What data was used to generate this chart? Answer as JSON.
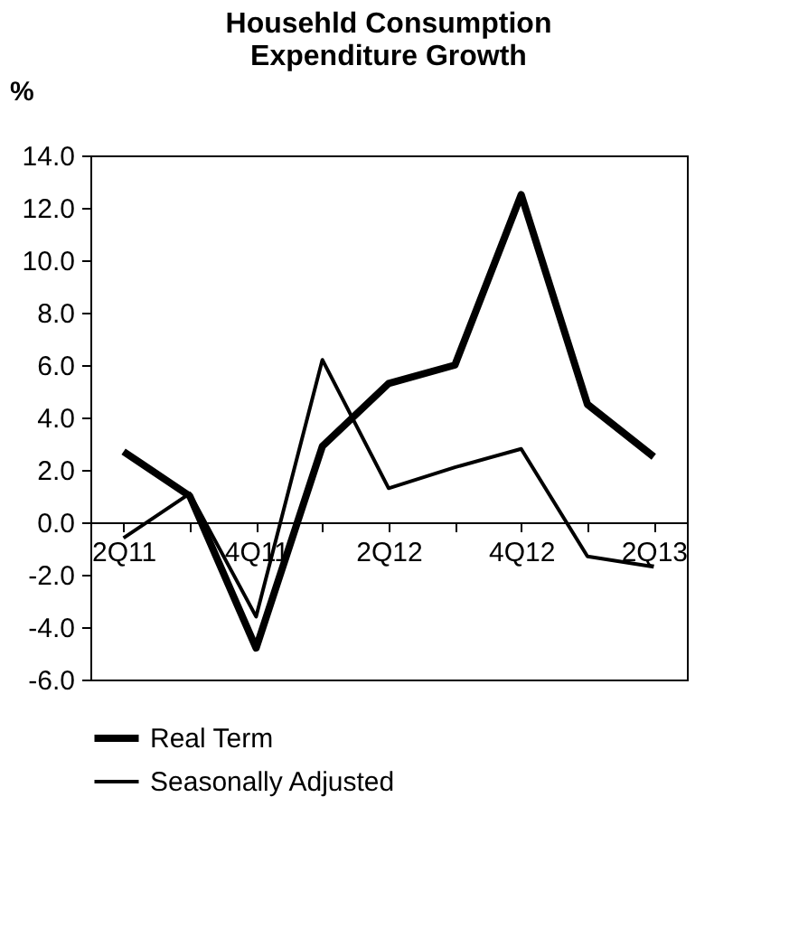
{
  "chart_data": {
    "type": "line",
    "title": "Househld Consumption\nExpenditure Growth",
    "ylabel": "%",
    "categories": [
      "2Q11",
      null,
      "4Q11",
      null,
      "2Q12",
      null,
      "4Q12",
      null,
      "2Q13"
    ],
    "series": [
      {
        "name": "Real Term",
        "color": "#000000",
        "values": [
          2.7,
          1.0,
          -4.8,
          2.9,
          5.3,
          6.0,
          12.5,
          4.5,
          2.5
        ]
      },
      {
        "name": "Seasonally Adjusted",
        "color": "#000000",
        "values": [
          -0.6,
          1.1,
          -3.6,
          6.2,
          1.3,
          2.1,
          2.8,
          -1.3,
          -1.7
        ]
      }
    ],
    "ylim": [
      -6,
      14
    ],
    "yticks": [
      {
        "value": -6,
        "label": "-6.0"
      },
      {
        "value": -4,
        "label": "-4.0"
      },
      {
        "value": -2,
        "label": "-2.0"
      },
      {
        "value": 0,
        "label": "0.0"
      },
      {
        "value": 2,
        "label": "2.0"
      },
      {
        "value": 4,
        "label": "4.0"
      },
      {
        "value": 6,
        "label": "6.0"
      },
      {
        "value": 8,
        "label": "8.0"
      },
      {
        "value": 10,
        "label": "10.0"
      },
      {
        "value": 12,
        "label": "12.0"
      },
      {
        "value": 14,
        "label": "14.0"
      }
    ],
    "grid": false,
    "legend": "bottom"
  }
}
